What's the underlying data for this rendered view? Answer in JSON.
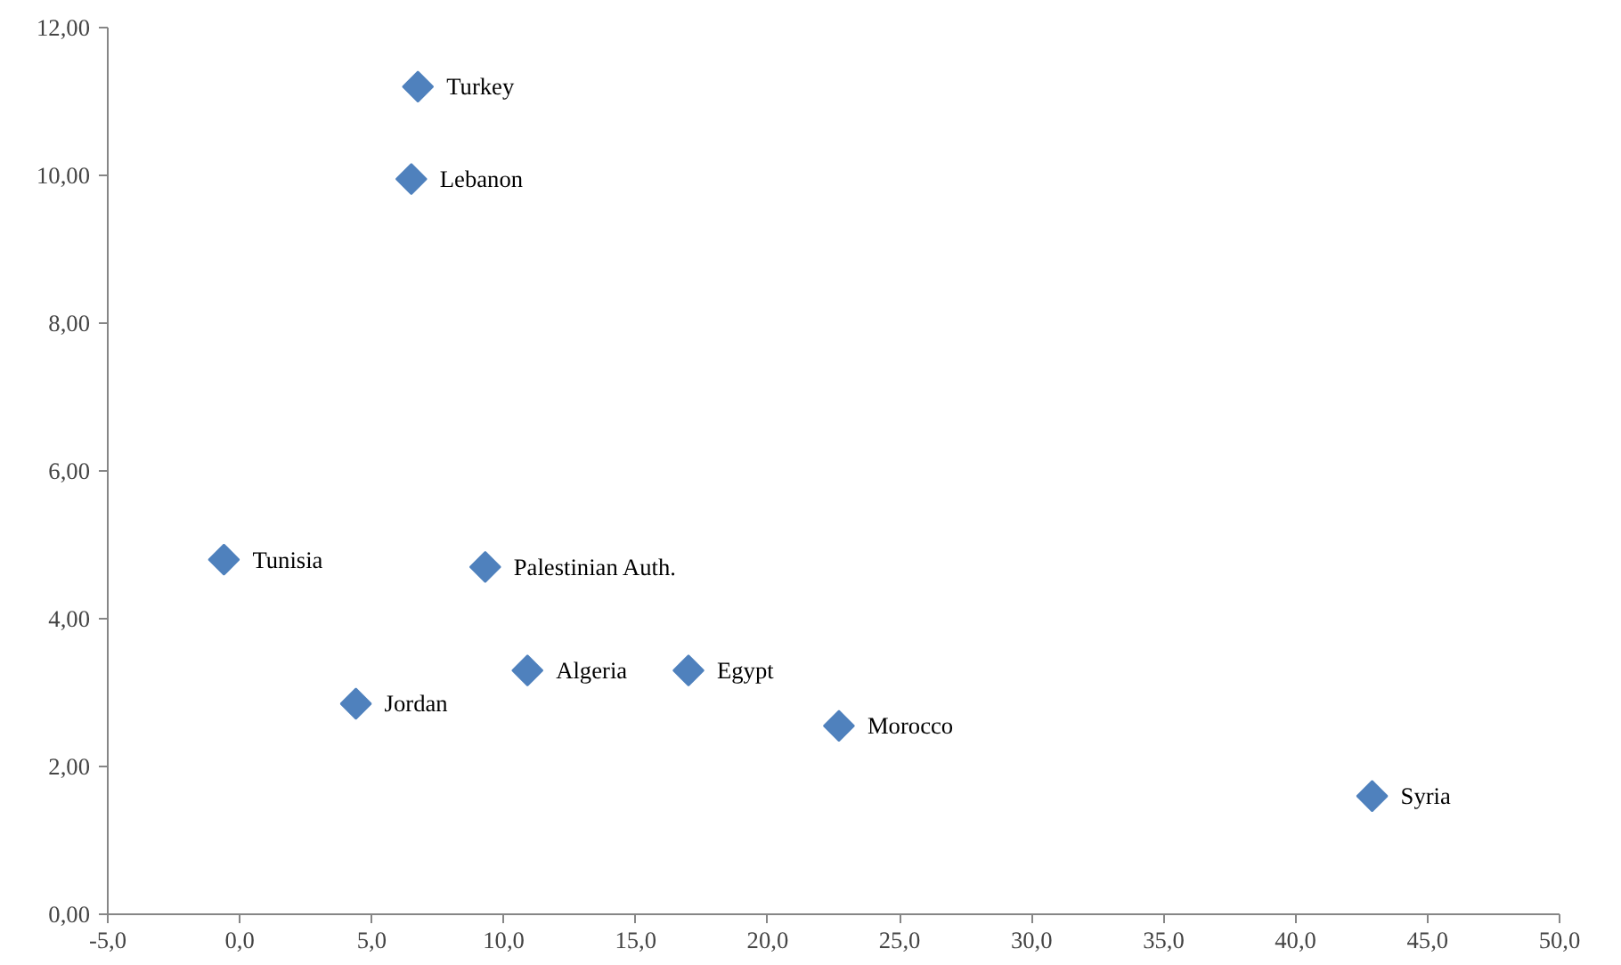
{
  "chart_data": {
    "type": "scatter",
    "marker": "diamond",
    "grid": false,
    "xlim": [
      -5,
      50
    ],
    "xticks": [
      {
        "value": -5,
        "label": "-5,0"
      },
      {
        "value": 0,
        "label": "0,0"
      },
      {
        "value": 5,
        "label": "5,0"
      },
      {
        "value": 10,
        "label": "10,0"
      },
      {
        "value": 15,
        "label": "15,0"
      },
      {
        "value": 20,
        "label": "20,0"
      },
      {
        "value": 25,
        "label": "25,0"
      },
      {
        "value": 30,
        "label": "30,0"
      },
      {
        "value": 35,
        "label": "35,0"
      },
      {
        "value": 40,
        "label": "40,0"
      },
      {
        "value": 45,
        "label": "45,0"
      },
      {
        "value": 50,
        "label": "50,0"
      }
    ],
    "ylim": [
      0,
      12
    ],
    "yticks": [
      {
        "value": 0,
        "label": "0,00"
      },
      {
        "value": 2,
        "label": "2,00"
      },
      {
        "value": 4,
        "label": "4,00"
      },
      {
        "value": 6,
        "label": "6,00"
      },
      {
        "value": 8,
        "label": "8,00"
      },
      {
        "value": 10,
        "label": "10,00"
      },
      {
        "value": 12,
        "label": "12,00"
      }
    ],
    "series": [
      {
        "color": "#4f81bd",
        "x": [
          6.75,
          6.5,
          -0.6,
          9.3,
          4.4,
          10.9,
          17.0,
          22.7,
          42.9
        ],
        "values": [
          11.2,
          9.95,
          4.8,
          4.7,
          2.85,
          3.3,
          3.3,
          2.55,
          1.6
        ]
      }
    ],
    "annotations": [
      {
        "text": "Turkey",
        "x": 6.75,
        "y": 11.2
      },
      {
        "text": "Lebanon",
        "x": 6.5,
        "y": 9.95
      },
      {
        "text": "Tunisia",
        "x": -0.6,
        "y": 4.8
      },
      {
        "text": "Palestinian Auth.",
        "x": 9.3,
        "y": 4.7
      },
      {
        "text": "Jordan",
        "x": 4.4,
        "y": 2.85
      },
      {
        "text": "Algeria",
        "x": 10.9,
        "y": 3.3
      },
      {
        "text": "Egypt",
        "x": 17.0,
        "y": 3.3
      },
      {
        "text": "Morocco",
        "x": 22.7,
        "y": 2.55
      },
      {
        "text": "Syria",
        "x": 42.9,
        "y": 1.6
      }
    ]
  }
}
